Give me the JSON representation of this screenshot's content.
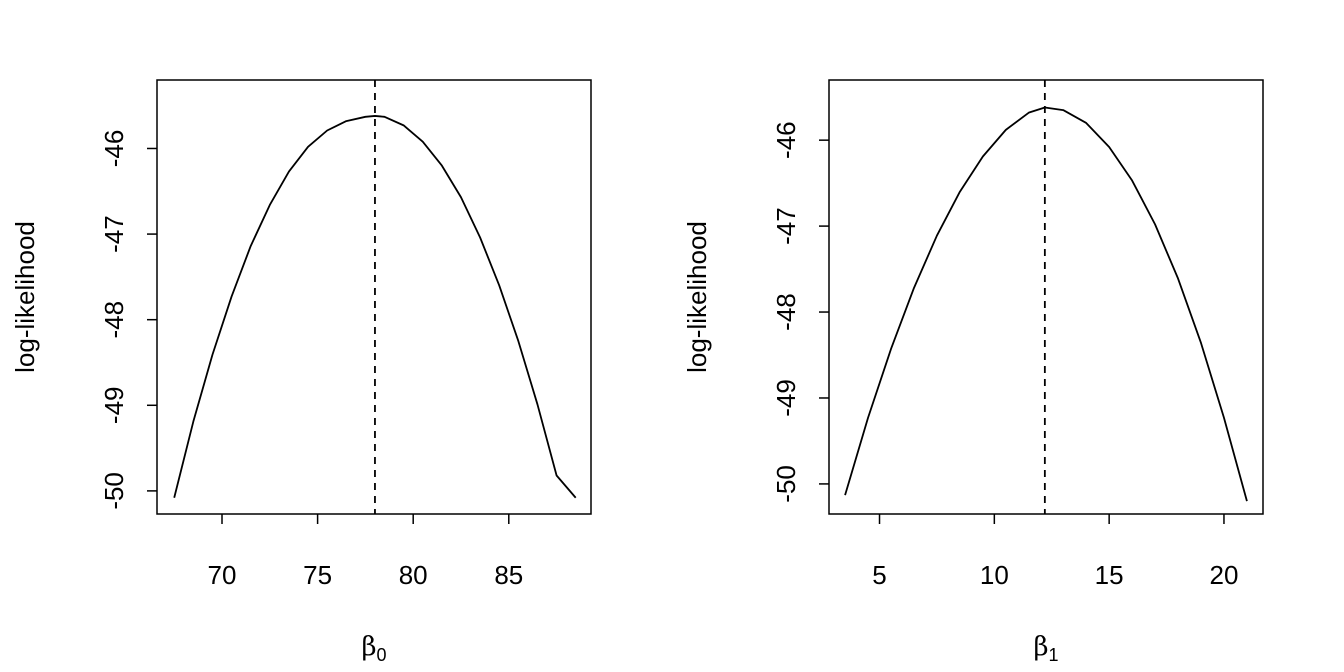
{
  "chart_data": [
    {
      "type": "line",
      "title": "",
      "xlabel_symbol": "β",
      "xlabel_subscript": "0",
      "ylabel": "log-likelihood",
      "xlim": [
        66.6,
        89.3
      ],
      "ylim": [
        -50.27,
        -45.2
      ],
      "xticks": [
        70,
        75,
        80,
        85
      ],
      "yticks": [
        -50,
        -49,
        -48,
        -47,
        -46
      ],
      "grid": false,
      "legend": "none",
      "series": [
        {
          "x": [
            67.5,
            68.5,
            69.5,
            70.5,
            71.5,
            72.5,
            73.5,
            74.5,
            75.5,
            76.5,
            77.5,
            78.0,
            78.5,
            79.5,
            80.5,
            81.5,
            82.5,
            83.5,
            84.5,
            85.5,
            86.5,
            87.5,
            88.5
          ],
          "y": [
            -50.08,
            -49.19,
            -48.41,
            -47.73,
            -47.14,
            -46.66,
            -46.27,
            -45.98,
            -45.79,
            -45.68,
            -45.63,
            -45.62,
            -45.63,
            -45.73,
            -45.92,
            -46.2,
            -46.57,
            -47.04,
            -47.6,
            -48.25,
            -48.99,
            -49.82,
            -50.08
          ]
        }
      ],
      "vline": {
        "x": 78.0,
        "style": "dashed"
      }
    },
    {
      "type": "line",
      "title": "",
      "xlabel_symbol": "β",
      "xlabel_subscript": "1",
      "ylabel": "log-likelihood",
      "xlim": [
        2.8,
        21.7
      ],
      "ylim": [
        -50.35,
        -45.3
      ],
      "xticks": [
        5,
        10,
        15,
        20
      ],
      "yticks": [
        -50,
        -49,
        -48,
        -47,
        -46
      ],
      "grid": false,
      "legend": "none",
      "series": [
        {
          "x": [
            3.5,
            4.5,
            5.5,
            6.5,
            7.5,
            8.5,
            9.5,
            10.5,
            11.5,
            12.2,
            13.0,
            14.0,
            15.0,
            16.0,
            17.0,
            18.0,
            19.0,
            20.0,
            21.0
          ],
          "y": [
            -50.13,
            -49.23,
            -48.43,
            -47.72,
            -47.11,
            -46.6,
            -46.19,
            -45.88,
            -45.68,
            -45.62,
            -45.65,
            -45.8,
            -46.08,
            -46.47,
            -46.98,
            -47.61,
            -48.36,
            -49.23,
            -50.2
          ]
        }
      ],
      "vline": {
        "x": 12.2,
        "style": "dashed"
      }
    }
  ]
}
